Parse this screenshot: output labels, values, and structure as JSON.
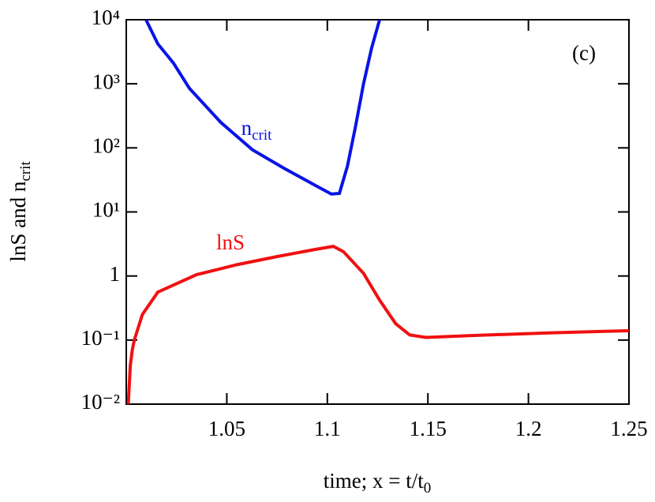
{
  "chart_data": {
    "type": "line",
    "xlabel": {
      "text": "time; x = t/t",
      "subscript": "0"
    },
    "ylabel": {
      "text": "lnS and n",
      "subscript": "crit"
    },
    "annotation": "(c)",
    "xlim": [
      1,
      1.25
    ],
    "xticks": [
      1.05,
      1.1,
      1.15,
      1.2,
      1.25
    ],
    "ylim": [
      0.01,
      10000
    ],
    "yscale": "log",
    "yticks": [
      {
        "value": 0.01,
        "label": "10⁻²"
      },
      {
        "value": 0.1,
        "label": "10⁻¹"
      },
      1,
      {
        "value": 10,
        "label": "10¹"
      },
      {
        "value": 100,
        "label": "10²"
      },
      {
        "value": 1000,
        "label": "10³"
      },
      {
        "value": 10000,
        "label": "10⁴"
      }
    ],
    "series": [
      {
        "name": "n",
        "name_sub": "crit",
        "color": "#0a14e6",
        "x": [
          1.0098,
          1.0157,
          1.0235,
          1.0314,
          1.047,
          1.0628,
          1.0785,
          1.094,
          1.102,
          1.106,
          1.11,
          1.114,
          1.118,
          1.122,
          1.126
        ],
        "values": [
          10000,
          4200,
          2100,
          850,
          250,
          93,
          48,
          26,
          19,
          19.5,
          52,
          215,
          1000,
          3600,
          10000
        ]
      },
      {
        "name": "lnS",
        "color": "#f01010",
        "x": [
          1.001,
          1.002,
          1.003,
          1.004,
          1.008,
          1.0157,
          1.035,
          1.055,
          1.0746,
          1.094,
          1.103,
          1.108,
          1.118,
          1.126,
          1.134,
          1.141,
          1.149,
          1.173,
          1.212,
          1.25
        ],
        "values": [
          0.01,
          0.04,
          0.07,
          0.1,
          0.25,
          0.56,
          1.05,
          1.5,
          2.0,
          2.6,
          2.9,
          2.4,
          1.1,
          0.42,
          0.18,
          0.12,
          0.11,
          0.118,
          0.13,
          0.14
        ]
      }
    ]
  }
}
